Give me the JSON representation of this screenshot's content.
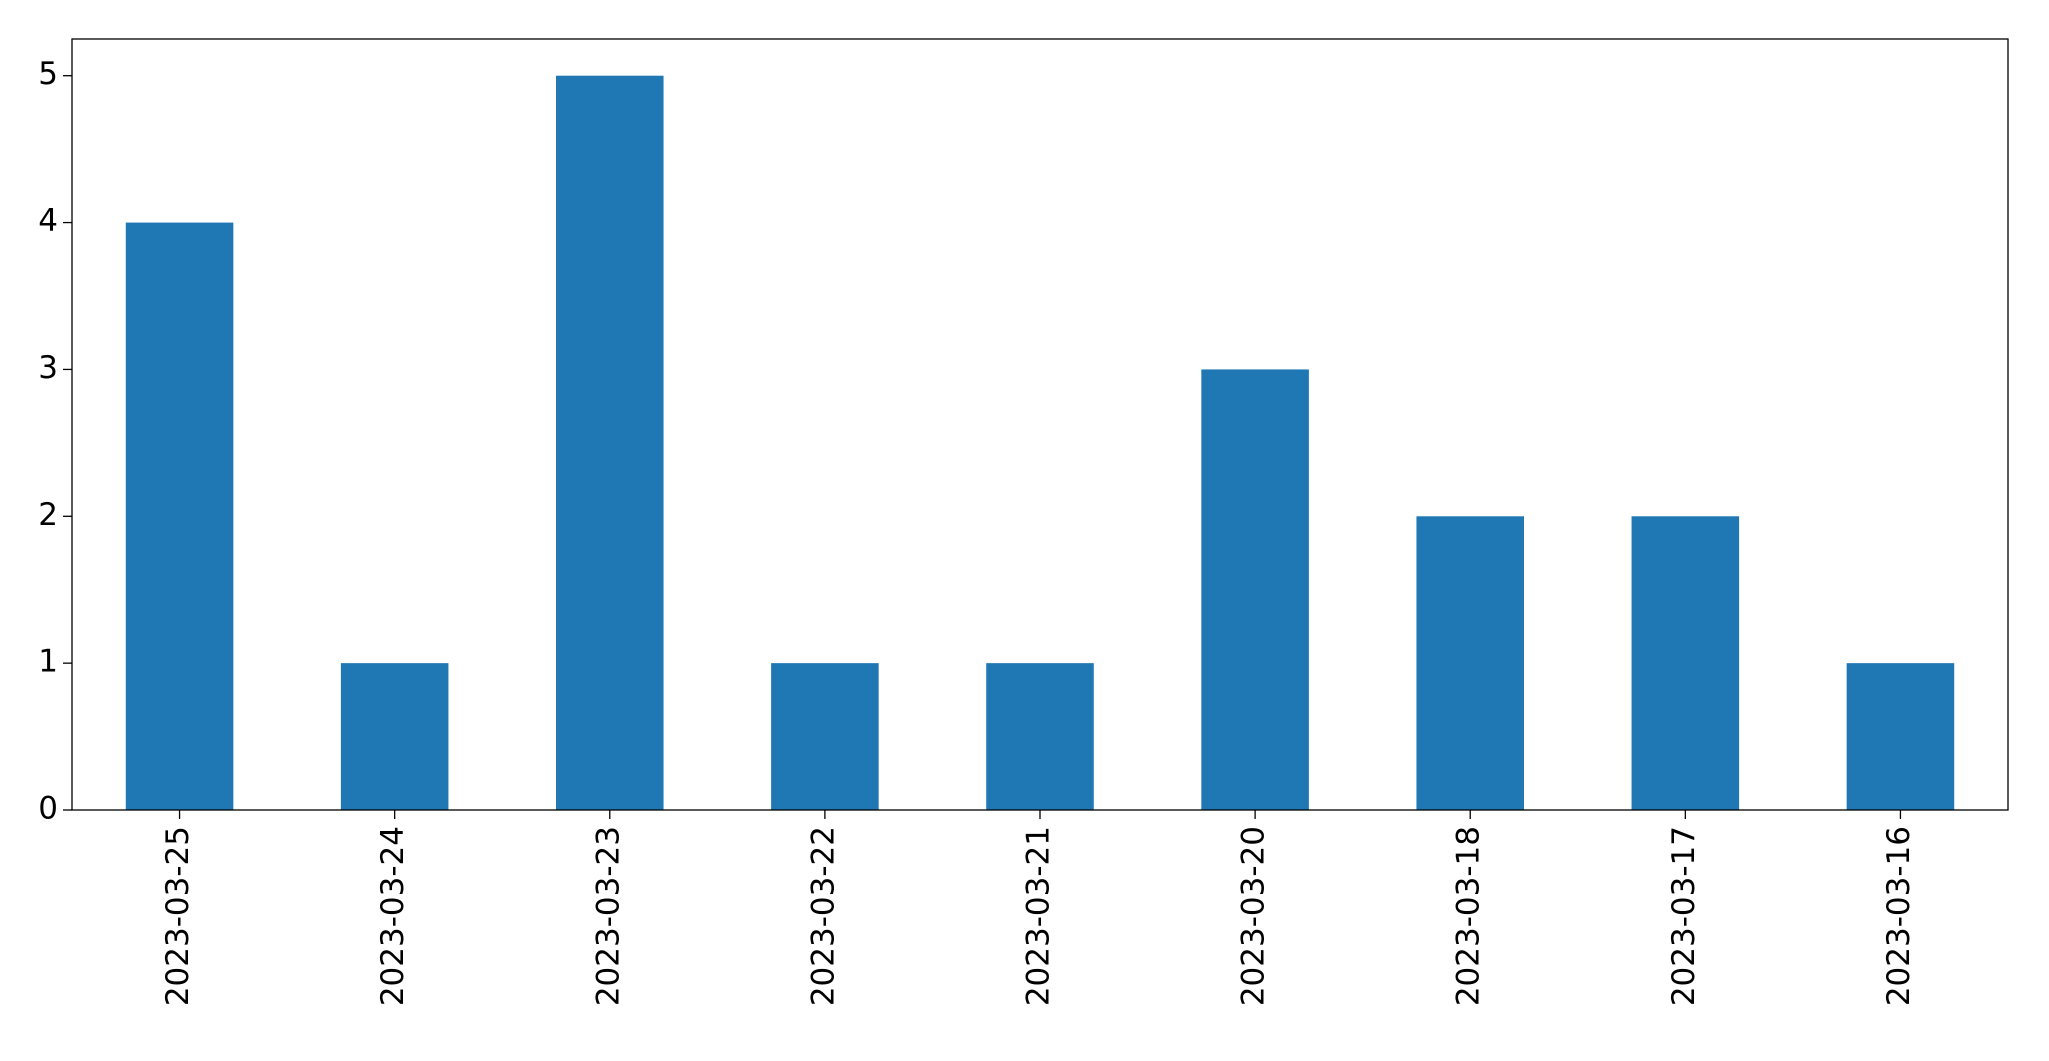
{
  "chart_data": {
    "type": "bar",
    "categories": [
      "2023-03-25",
      "2023-03-24",
      "2023-03-23",
      "2023-03-22",
      "2023-03-21",
      "2023-03-20",
      "2023-03-18",
      "2023-03-17",
      "2023-03-16"
    ],
    "values": [
      4,
      1,
      5,
      1,
      1,
      3,
      2,
      2,
      1
    ],
    "color": "#1f77b4",
    "ylim": [
      0,
      5.25
    ],
    "yticks": [
      0,
      1,
      2,
      3,
      4,
      5
    ],
    "grid": false
  }
}
